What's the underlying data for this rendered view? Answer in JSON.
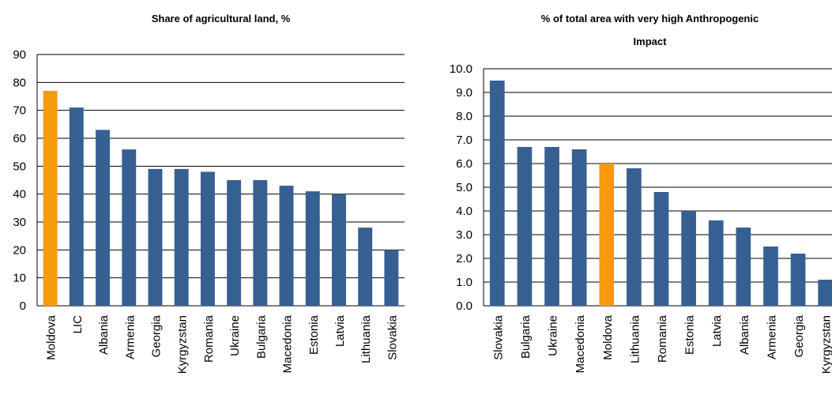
{
  "chart_data": [
    {
      "type": "bar",
      "title": "Share of agricultural land, %",
      "categories": [
        "Moldova",
        "LIC",
        "Albania",
        "Armenia",
        "Georgia",
        "Kyrgyzstan",
        "Romania",
        "Ukraine",
        "Bulgaria",
        "Macedonia",
        "Estonia",
        "Latvia",
        "Lithuania",
        "Slovakia"
      ],
      "values": [
        77,
        71,
        63,
        56,
        49,
        49,
        48,
        45,
        45,
        43,
        41,
        40,
        28,
        20
      ],
      "colors": [
        "#f79a0e",
        "#376092",
        "#376092",
        "#376092",
        "#376092",
        "#376092",
        "#376092",
        "#376092",
        "#376092",
        "#376092",
        "#376092",
        "#376092",
        "#376092",
        "#376092"
      ],
      "ylim": [
        0,
        90
      ],
      "yticks": [
        0,
        10,
        20,
        30,
        40,
        50,
        60,
        70,
        80,
        90
      ],
      "grid": true
    },
    {
      "type": "bar",
      "title": "% of total area with very high Anthropogenic Impact",
      "categories": [
        "Slovakia",
        "Bulgaria",
        "Ukraine",
        "Macedonia",
        "Moldova",
        "Lithuania",
        "Romania",
        "Estonia",
        "Latvia",
        "Albania",
        "Armenia",
        "Georgia",
        "Kyrgyzstan"
      ],
      "values": [
        9.5,
        6.7,
        6.7,
        6.6,
        6.0,
        5.8,
        4.8,
        4.0,
        3.6,
        3.3,
        2.5,
        2.2,
        1.1
      ],
      "colors": [
        "#376092",
        "#376092",
        "#376092",
        "#376092",
        "#f79a0e",
        "#376092",
        "#376092",
        "#376092",
        "#376092",
        "#376092",
        "#376092",
        "#376092",
        "#376092"
      ],
      "ylim": [
        0,
        10
      ],
      "yticks": [
        {
          "value": 0,
          "label": "0.0"
        },
        {
          "value": 1,
          "label": "1.0"
        },
        {
          "value": 2,
          "label": "2.0"
        },
        {
          "value": 3,
          "label": "3.0"
        },
        {
          "value": 4,
          "label": "4.0"
        },
        {
          "value": 5,
          "label": "5.0"
        },
        {
          "value": 6,
          "label": "6.0"
        },
        {
          "value": 7,
          "label": "7.0"
        },
        {
          "value": 8,
          "label": "8.0"
        },
        {
          "value": 9,
          "label": "9.0"
        },
        {
          "value": 10,
          "label": "10.0"
        }
      ],
      "grid": true
    }
  ]
}
